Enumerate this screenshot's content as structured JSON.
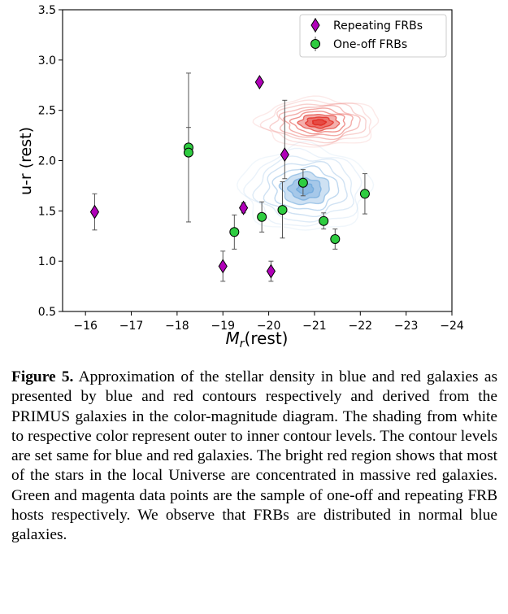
{
  "chart_data": {
    "type": "scatter",
    "xlabel": "M_r(rest)",
    "ylabel": "u-r (rest)",
    "xlim": [
      -15.5,
      -24
    ],
    "ylim": [
      0.5,
      3.5
    ],
    "x_ticks": [
      -16,
      -17,
      -18,
      -19,
      -20,
      -21,
      -22,
      -23,
      -24
    ],
    "x_tick_labels": [
      "−16",
      "−17",
      "−18",
      "−19",
      "−20",
      "−21",
      "−22",
      "−23",
      "−24"
    ],
    "y_ticks": [
      0.5,
      1.0,
      1.5,
      2.0,
      2.5,
      3.0,
      3.5
    ],
    "y_tick_labels": [
      "0.5",
      "1.0",
      "1.5",
      "2.0",
      "2.5",
      "3.0",
      "3.5"
    ],
    "grid": false,
    "legend_position": "top-right",
    "series": [
      {
        "name": "Repeating FRBs",
        "marker": "diamond",
        "color": "#b000b8",
        "points": [
          {
            "x": -16.2,
            "y": 1.49,
            "yerr": [
              0.18,
              0.18
            ]
          },
          {
            "x": -19.0,
            "y": 0.95,
            "yerr": [
              0.15,
              0.15
            ]
          },
          {
            "x": -19.45,
            "y": 1.53,
            "yerr": [
              0.05,
              0.05
            ]
          },
          {
            "x": -19.8,
            "y": 2.78,
            "yerr": [
              0.0,
              0.0
            ]
          },
          {
            "x": -20.05,
            "y": 0.9,
            "yerr": [
              0.1,
              0.1
            ]
          },
          {
            "x": -20.35,
            "y": 2.06,
            "yerr": [
              0.24,
              0.54
            ]
          }
        ]
      },
      {
        "name": "One-off FRBs",
        "marker": "circle",
        "color": "#2ecc40",
        "points": [
          {
            "x": -18.25,
            "y": 2.13,
            "yerr": [
              0.74,
              0.74
            ]
          },
          {
            "x": -18.25,
            "y": 2.08,
            "yerr": [
              0.0,
              0.25
            ]
          },
          {
            "x": -19.25,
            "y": 1.29,
            "yerr": [
              0.17,
              0.17
            ]
          },
          {
            "x": -19.85,
            "y": 1.44,
            "yerr": [
              0.15,
              0.15
            ]
          },
          {
            "x": -20.3,
            "y": 1.51,
            "yerr": [
              0.28,
              0.28
            ]
          },
          {
            "x": -20.75,
            "y": 1.78,
            "yerr": [
              0.13,
              0.13
            ]
          },
          {
            "x": -21.2,
            "y": 1.4,
            "yerr": [
              0.08,
              0.08
            ]
          },
          {
            "x": -21.45,
            "y": 1.22,
            "yerr": [
              0.1,
              0.1
            ]
          },
          {
            "x": -22.1,
            "y": 1.67,
            "yerr": [
              0.2,
              0.2
            ]
          }
        ]
      }
    ],
    "density_contours": [
      {
        "population": "blue galaxies",
        "color": "#6fa8dc",
        "center": [
          -20.8,
          1.72
        ],
        "spread": [
          1.4,
          0.42
        ],
        "levels": 8
      },
      {
        "population": "red galaxies",
        "color": "#e0241b",
        "center": [
          -21.1,
          2.38
        ],
        "spread": [
          1.3,
          0.24
        ],
        "levels": 9
      }
    ]
  },
  "caption": {
    "label": "Figure 5.",
    "text": "Approximation of the stellar density in blue and red galaxies as presented by blue and red contours respectively and derived from the PRIMUS galaxies in the color-magnitude diagram. The shading from white to respective color represent outer to inner contour levels. The contour levels are set same for blue and red galaxies. The bright red region shows that most of the stars in the local Universe are concentrated in massive red galaxies. Green and magenta data points are the sample of one-off and repeating FRB hosts respectively. We observe that FRBs are distributed in normal blue galaxies."
  }
}
